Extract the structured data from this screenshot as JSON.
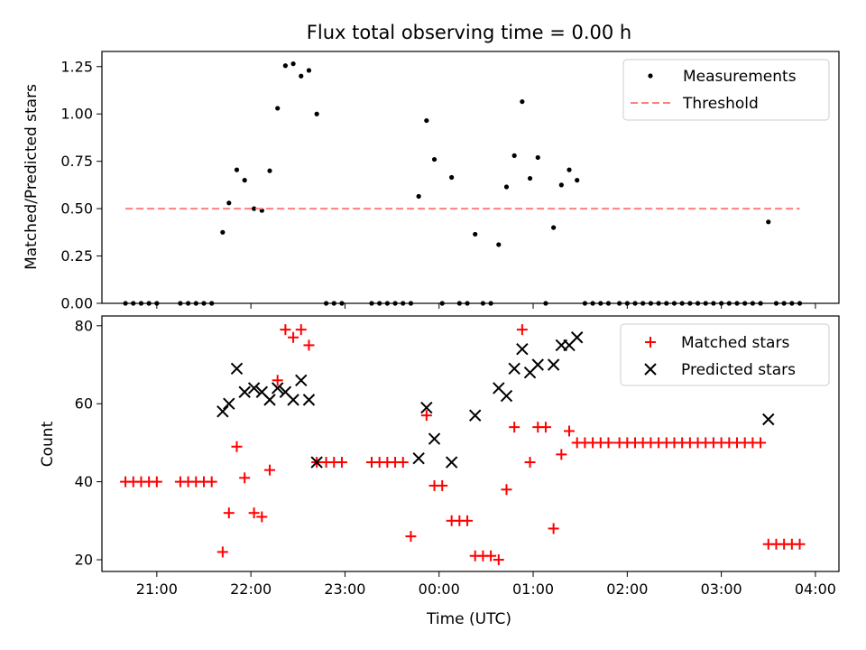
{
  "chart_data": [
    {
      "type": "scatter",
      "title": "Flux total observing time = 0.00 h",
      "xlabel": "",
      "ylabel": "Matched/Predicted stars",
      "xlim": [
        "2024-01-01T20:25",
        "2024-01-02T04:15"
      ],
      "ylim": [
        0,
        1.33
      ],
      "yticks": [
        0,
        0.25,
        0.5,
        0.75,
        1.0,
        1.25
      ],
      "ytick_labels": [
        "0.00",
        "0.25",
        "0.50",
        "0.75",
        "1.00",
        "1.25"
      ],
      "xticks": [
        "2024-01-01T21:00",
        "2024-01-01T22:00",
        "2024-01-01T23:00",
        "2024-01-02T00:00",
        "2024-01-02T01:00",
        "2024-01-02T02:00",
        "2024-01-02T03:00",
        "2024-01-02T04:00"
      ],
      "grid": false,
      "legend_position": "top-right",
      "series": [
        {
          "name": "Measurements",
          "kind": "scatter",
          "color": "#000000",
          "points": [
            [
              "2024-01-01T20:40",
              0
            ],
            [
              "2024-01-01T20:45",
              0
            ],
            [
              "2024-01-01T20:50",
              0
            ],
            [
              "2024-01-01T20:55",
              0
            ],
            [
              "2024-01-01T21:00",
              0
            ],
            [
              "2024-01-01T21:15",
              0
            ],
            [
              "2024-01-01T21:20",
              0
            ],
            [
              "2024-01-01T21:25",
              0
            ],
            [
              "2024-01-01T21:30",
              0
            ],
            [
              "2024-01-01T21:35",
              0
            ],
            [
              "2024-01-01T21:42",
              0.375
            ],
            [
              "2024-01-01T21:46",
              0.53
            ],
            [
              "2024-01-01T21:51",
              0.705
            ],
            [
              "2024-01-01T21:56",
              0.65
            ],
            [
              "2024-01-01T22:02",
              0.5
            ],
            [
              "2024-01-01T22:07",
              0.49
            ],
            [
              "2024-01-01T22:12",
              0.7
            ],
            [
              "2024-01-01T22:17",
              1.03
            ],
            [
              "2024-01-01T22:22",
              1.255
            ],
            [
              "2024-01-01T22:27",
              1.265
            ],
            [
              "2024-01-01T22:32",
              1.2
            ],
            [
              "2024-01-01T22:37",
              1.23
            ],
            [
              "2024-01-01T22:42",
              1.0
            ],
            [
              "2024-01-01T22:48",
              0
            ],
            [
              "2024-01-01T22:53",
              0
            ],
            [
              "2024-01-01T22:58",
              0
            ],
            [
              "2024-01-01T23:17",
              0
            ],
            [
              "2024-01-01T23:22",
              0
            ],
            [
              "2024-01-01T23:27",
              0
            ],
            [
              "2024-01-01T23:32",
              0
            ],
            [
              "2024-01-01T23:37",
              0
            ],
            [
              "2024-01-01T23:42",
              0
            ],
            [
              "2024-01-01T23:47",
              0.565
            ],
            [
              "2024-01-01T23:52",
              0.965
            ],
            [
              "2024-01-01T23:57",
              0.76
            ],
            [
              "2024-01-02T00:02",
              0
            ],
            [
              "2024-01-02T00:08",
              0.665
            ],
            [
              "2024-01-02T00:13",
              0
            ],
            [
              "2024-01-02T00:18",
              0
            ],
            [
              "2024-01-02T00:23",
              0.365
            ],
            [
              "2024-01-02T00:28",
              0
            ],
            [
              "2024-01-02T00:33",
              0
            ],
            [
              "2024-01-02T00:38",
              0.31
            ],
            [
              "2024-01-02T00:43",
              0.615
            ],
            [
              "2024-01-02T00:48",
              0.78
            ],
            [
              "2024-01-02T00:53",
              1.065
            ],
            [
              "2024-01-02T00:58",
              0.66
            ],
            [
              "2024-01-02T01:03",
              0.77
            ],
            [
              "2024-01-02T01:08",
              0
            ],
            [
              "2024-01-02T01:13",
              0.4
            ],
            [
              "2024-01-02T01:18",
              0.625
            ],
            [
              "2024-01-02T01:23",
              0.705
            ],
            [
              "2024-01-02T01:28",
              0.65
            ],
            [
              "2024-01-02T01:33",
              0
            ],
            [
              "2024-01-02T01:38",
              0
            ],
            [
              "2024-01-02T01:43",
              0
            ],
            [
              "2024-01-02T01:48",
              0
            ],
            [
              "2024-01-02T01:55",
              0
            ],
            [
              "2024-01-02T02:00",
              0
            ],
            [
              "2024-01-02T02:05",
              0
            ],
            [
              "2024-01-02T02:10",
              0
            ],
            [
              "2024-01-02T02:15",
              0
            ],
            [
              "2024-01-02T02:20",
              0
            ],
            [
              "2024-01-02T02:25",
              0
            ],
            [
              "2024-01-02T02:30",
              0
            ],
            [
              "2024-01-02T02:35",
              0
            ],
            [
              "2024-01-02T02:40",
              0
            ],
            [
              "2024-01-02T02:45",
              0
            ],
            [
              "2024-01-02T02:50",
              0
            ],
            [
              "2024-01-02T02:55",
              0
            ],
            [
              "2024-01-02T03:00",
              0
            ],
            [
              "2024-01-02T03:05",
              0
            ],
            [
              "2024-01-02T03:10",
              0
            ],
            [
              "2024-01-02T03:15",
              0
            ],
            [
              "2024-01-02T03:20",
              0
            ],
            [
              "2024-01-02T03:25",
              0
            ],
            [
              "2024-01-02T03:30",
              0.43
            ],
            [
              "2024-01-02T03:35",
              0
            ],
            [
              "2024-01-02T03:40",
              0
            ],
            [
              "2024-01-02T03:45",
              0
            ],
            [
              "2024-01-02T03:50",
              0
            ]
          ]
        },
        {
          "name": "Threshold",
          "kind": "dashed-line",
          "color": "#ff7f7f",
          "points": [
            [
              "2024-01-01T20:40",
              0.5
            ],
            [
              "2024-01-02T03:50",
              0.5
            ]
          ]
        }
      ]
    },
    {
      "type": "scatter",
      "title": "",
      "xlabel": "Time (UTC)",
      "ylabel": "Count",
      "xlim": [
        "2024-01-01T20:25",
        "2024-01-02T04:15"
      ],
      "ylim": [
        17,
        82.5
      ],
      "yticks": [
        20,
        40,
        60,
        80
      ],
      "ytick_labels": [
        "20",
        "40",
        "60",
        "80"
      ],
      "xticks": [
        "2024-01-01T21:00",
        "2024-01-01T22:00",
        "2024-01-01T23:00",
        "2024-01-02T00:00",
        "2024-01-02T01:00",
        "2024-01-02T02:00",
        "2024-01-02T03:00",
        "2024-01-02T04:00"
      ],
      "xtick_labels": [
        "21:00",
        "22:00",
        "23:00",
        "00:00",
        "01:00",
        "02:00",
        "03:00",
        "04:00"
      ],
      "grid": false,
      "legend_position": "top-right",
      "series": [
        {
          "name": "Matched stars",
          "kind": "plus",
          "color": "#ff0000",
          "points": [
            [
              "2024-01-01T20:40",
              40
            ],
            [
              "2024-01-01T20:45",
              40
            ],
            [
              "2024-01-01T20:50",
              40
            ],
            [
              "2024-01-01T20:55",
              40
            ],
            [
              "2024-01-01T21:00",
              40
            ],
            [
              "2024-01-01T21:15",
              40
            ],
            [
              "2024-01-01T21:20",
              40
            ],
            [
              "2024-01-01T21:25",
              40
            ],
            [
              "2024-01-01T21:30",
              40
            ],
            [
              "2024-01-01T21:35",
              40
            ],
            [
              "2024-01-01T21:42",
              22
            ],
            [
              "2024-01-01T21:46",
              32
            ],
            [
              "2024-01-01T21:51",
              49
            ],
            [
              "2024-01-01T21:56",
              41
            ],
            [
              "2024-01-01T22:02",
              32
            ],
            [
              "2024-01-01T22:07",
              31
            ],
            [
              "2024-01-01T22:12",
              43
            ],
            [
              "2024-01-01T22:17",
              66
            ],
            [
              "2024-01-01T22:22",
              79
            ],
            [
              "2024-01-01T22:27",
              77
            ],
            [
              "2024-01-01T22:32",
              79
            ],
            [
              "2024-01-01T22:37",
              75
            ],
            [
              "2024-01-01T22:42",
              45
            ],
            [
              "2024-01-01T22:48",
              45
            ],
            [
              "2024-01-01T22:53",
              45
            ],
            [
              "2024-01-01T22:58",
              45
            ],
            [
              "2024-01-01T23:17",
              45
            ],
            [
              "2024-01-01T23:22",
              45
            ],
            [
              "2024-01-01T23:27",
              45
            ],
            [
              "2024-01-01T23:32",
              45
            ],
            [
              "2024-01-01T23:37",
              45
            ],
            [
              "2024-01-01T23:42",
              26
            ],
            [
              "2024-01-01T23:52",
              57
            ],
            [
              "2024-01-01T23:57",
              39
            ],
            [
              "2024-01-02T00:02",
              39
            ],
            [
              "2024-01-02T00:08",
              30
            ],
            [
              "2024-01-02T00:13",
              30
            ],
            [
              "2024-01-02T00:18",
              30
            ],
            [
              "2024-01-02T00:23",
              21
            ],
            [
              "2024-01-02T00:28",
              21
            ],
            [
              "2024-01-02T00:33",
              21
            ],
            [
              "2024-01-02T00:38",
              20
            ],
            [
              "2024-01-02T00:43",
              38
            ],
            [
              "2024-01-02T00:48",
              54
            ],
            [
              "2024-01-02T00:53",
              79
            ],
            [
              "2024-01-02T00:58",
              45
            ],
            [
              "2024-01-02T01:03",
              54
            ],
            [
              "2024-01-02T01:08",
              54
            ],
            [
              "2024-01-02T01:13",
              28
            ],
            [
              "2024-01-02T01:18",
              47
            ],
            [
              "2024-01-02T01:23",
              53
            ],
            [
              "2024-01-02T01:28",
              50
            ],
            [
              "2024-01-02T01:33",
              50
            ],
            [
              "2024-01-02T01:38",
              50
            ],
            [
              "2024-01-02T01:43",
              50
            ],
            [
              "2024-01-02T01:48",
              50
            ],
            [
              "2024-01-02T01:55",
              50
            ],
            [
              "2024-01-02T02:00",
              50
            ],
            [
              "2024-01-02T02:05",
              50
            ],
            [
              "2024-01-02T02:10",
              50
            ],
            [
              "2024-01-02T02:15",
              50
            ],
            [
              "2024-01-02T02:20",
              50
            ],
            [
              "2024-01-02T02:25",
              50
            ],
            [
              "2024-01-02T02:30",
              50
            ],
            [
              "2024-01-02T02:35",
              50
            ],
            [
              "2024-01-02T02:40",
              50
            ],
            [
              "2024-01-02T02:45",
              50
            ],
            [
              "2024-01-02T02:50",
              50
            ],
            [
              "2024-01-02T02:55",
              50
            ],
            [
              "2024-01-02T03:00",
              50
            ],
            [
              "2024-01-02T03:05",
              50
            ],
            [
              "2024-01-02T03:10",
              50
            ],
            [
              "2024-01-02T03:15",
              50
            ],
            [
              "2024-01-02T03:20",
              50
            ],
            [
              "2024-01-02T03:25",
              50
            ],
            [
              "2024-01-02T03:30",
              24
            ],
            [
              "2024-01-02T03:35",
              24
            ],
            [
              "2024-01-02T03:40",
              24
            ],
            [
              "2024-01-02T03:45",
              24
            ],
            [
              "2024-01-02T03:50",
              24
            ]
          ]
        },
        {
          "name": "Predicted stars",
          "kind": "x",
          "color": "#000000",
          "points": [
            [
              "2024-01-01T21:42",
              58
            ],
            [
              "2024-01-01T21:46",
              60
            ],
            [
              "2024-01-01T21:51",
              69
            ],
            [
              "2024-01-01T21:56",
              63
            ],
            [
              "2024-01-01T22:02",
              64
            ],
            [
              "2024-01-01T22:07",
              63
            ],
            [
              "2024-01-01T22:12",
              61
            ],
            [
              "2024-01-01T22:17",
              64
            ],
            [
              "2024-01-01T22:22",
              63
            ],
            [
              "2024-01-01T22:27",
              61
            ],
            [
              "2024-01-01T22:32",
              66
            ],
            [
              "2024-01-01T22:37",
              61
            ],
            [
              "2024-01-01T22:42",
              45
            ],
            [
              "2024-01-01T23:47",
              46
            ],
            [
              "2024-01-01T23:52",
              59
            ],
            [
              "2024-01-01T23:57",
              51
            ],
            [
              "2024-01-02T00:08",
              45
            ],
            [
              "2024-01-02T00:23",
              57
            ],
            [
              "2024-01-02T00:38",
              64
            ],
            [
              "2024-01-02T00:43",
              62
            ],
            [
              "2024-01-02T00:48",
              69
            ],
            [
              "2024-01-02T00:53",
              74
            ],
            [
              "2024-01-02T00:58",
              68
            ],
            [
              "2024-01-02T01:03",
              70
            ],
            [
              "2024-01-02T01:13",
              70
            ],
            [
              "2024-01-02T01:18",
              75
            ],
            [
              "2024-01-02T01:23",
              75
            ],
            [
              "2024-01-02T01:28",
              77
            ],
            [
              "2024-01-02T03:30",
              56
            ]
          ]
        }
      ]
    }
  ]
}
